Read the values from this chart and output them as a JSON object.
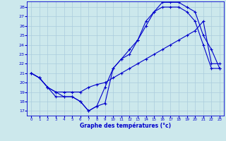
{
  "xlabel": "Graphe des températures (°c)",
  "bg_color": "#cce8ec",
  "grid_color": "#aaccdd",
  "line_color": "#0000cc",
  "xlim_min": -0.5,
  "xlim_max": 23.5,
  "ylim_min": 16.5,
  "ylim_max": 28.6,
  "xticks": [
    0,
    1,
    2,
    3,
    4,
    5,
    6,
    7,
    8,
    9,
    10,
    11,
    12,
    13,
    14,
    15,
    16,
    17,
    18,
    19,
    20,
    21,
    22,
    23
  ],
  "yticks": [
    17,
    18,
    19,
    20,
    21,
    22,
    23,
    24,
    25,
    26,
    27,
    28
  ],
  "series1_x": [
    0,
    1,
    2,
    3,
    4,
    5,
    6,
    7,
    8,
    9,
    10,
    11,
    12,
    13,
    14,
    15,
    16,
    17,
    18,
    19,
    20,
    21,
    22,
    23
  ],
  "series1_y": [
    21.0,
    20.5,
    19.5,
    19.0,
    18.5,
    18.5,
    18.0,
    17.0,
    17.5,
    17.8,
    21.5,
    22.5,
    23.0,
    24.5,
    26.5,
    27.5,
    28.5,
    28.5,
    28.5,
    28.0,
    27.5,
    25.0,
    23.5,
    21.5
  ],
  "series2_x": [
    0,
    1,
    2,
    3,
    4,
    5,
    6,
    7,
    8,
    9,
    10,
    11,
    12,
    13,
    14,
    15,
    16,
    17,
    18,
    19,
    20,
    21,
    22,
    23
  ],
  "series2_y": [
    21.0,
    20.5,
    19.5,
    18.5,
    18.5,
    18.5,
    18.0,
    17.0,
    17.5,
    19.5,
    21.5,
    22.5,
    23.5,
    24.5,
    26.0,
    27.5,
    28.0,
    28.0,
    28.0,
    27.5,
    26.5,
    24.0,
    21.5,
    21.5
  ],
  "series3_x": [
    0,
    1,
    2,
    3,
    4,
    5,
    6,
    7,
    8,
    9,
    10,
    11,
    12,
    13,
    14,
    15,
    16,
    17,
    18,
    19,
    20,
    21,
    22,
    23
  ],
  "series3_y": [
    21.0,
    20.5,
    19.5,
    19.0,
    19.0,
    19.0,
    19.0,
    19.5,
    19.8,
    20.0,
    20.5,
    21.0,
    21.5,
    22.0,
    22.5,
    23.0,
    23.5,
    24.0,
    24.5,
    25.0,
    25.5,
    26.5,
    22.0,
    22.0
  ]
}
